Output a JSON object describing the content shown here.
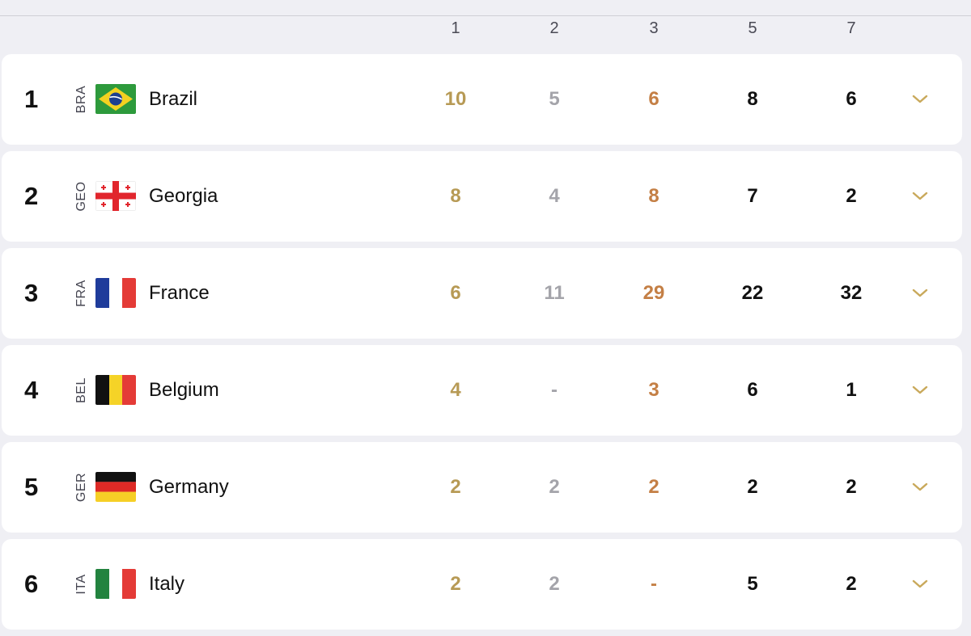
{
  "header": {
    "cols": [
      "1",
      "2",
      "3",
      "5",
      "7"
    ]
  },
  "colors": {
    "gold": "#b79a55",
    "silver": "#a4a4aa",
    "bronze": "#c47f45",
    "dark": "#111111",
    "chevron": "#c9a95b"
  },
  "rows": [
    {
      "rank": "1",
      "code": "BRA",
      "country": "Brazil",
      "flag": "brazil-flag",
      "values": [
        "10",
        "5",
        "6",
        "8",
        "6"
      ]
    },
    {
      "rank": "2",
      "code": "GEO",
      "country": "Georgia",
      "flag": "georgia-flag",
      "values": [
        "8",
        "4",
        "8",
        "7",
        "2"
      ]
    },
    {
      "rank": "3",
      "code": "FRA",
      "country": "France",
      "flag": "france-flag",
      "values": [
        "6",
        "11",
        "29",
        "22",
        "32"
      ]
    },
    {
      "rank": "4",
      "code": "BEL",
      "country": "Belgium",
      "flag": "belgium-flag",
      "values": [
        "4",
        "-",
        "3",
        "6",
        "1"
      ]
    },
    {
      "rank": "5",
      "code": "GER",
      "country": "Germany",
      "flag": "germany-flag",
      "values": [
        "2",
        "2",
        "2",
        "2",
        "2"
      ]
    },
    {
      "rank": "6",
      "code": "ITA",
      "country": "Italy",
      "flag": "italy-flag",
      "values": [
        "2",
        "2",
        "-",
        "5",
        "2"
      ]
    }
  ]
}
